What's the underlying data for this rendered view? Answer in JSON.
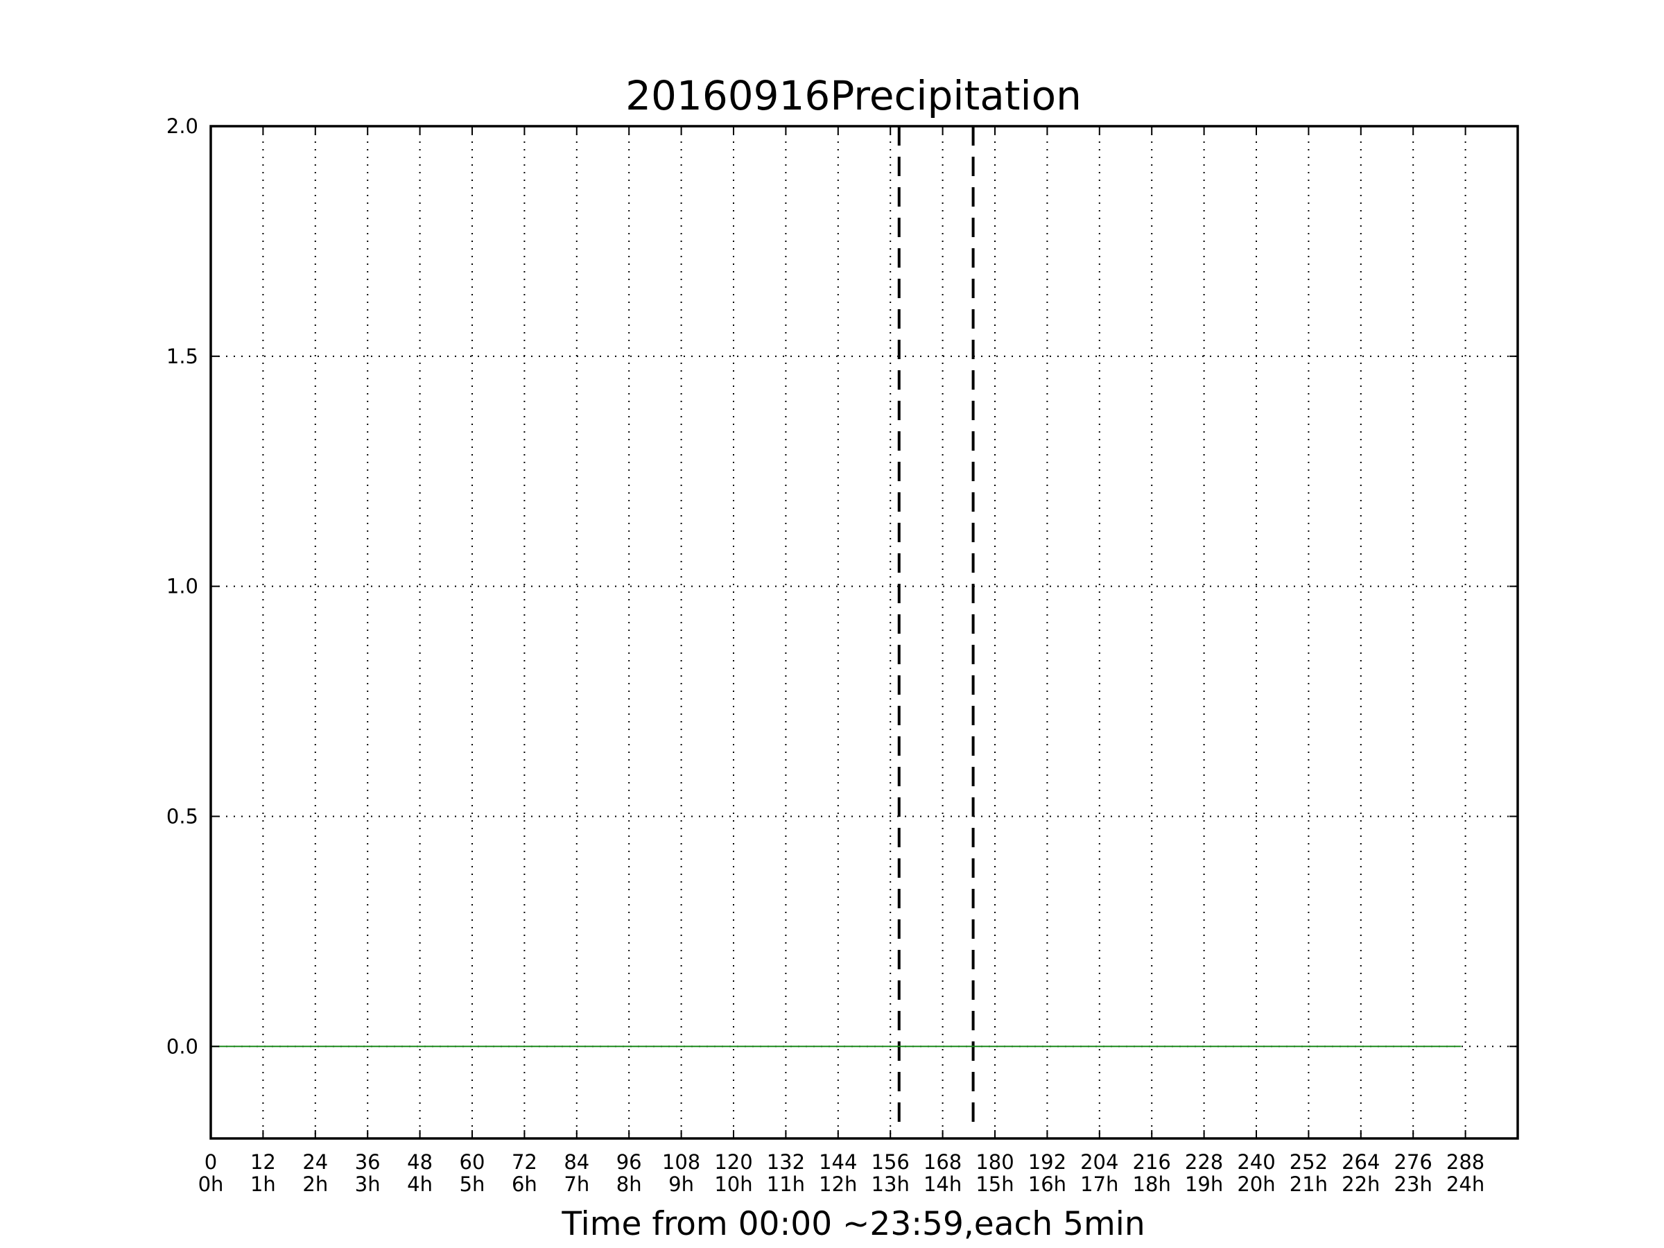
{
  "chart_data": {
    "type": "line",
    "title": "20160916Precipitation",
    "xlabel": "Time from 00:00 ~23:59,each 5min",
    "ylabel": "",
    "xlim": [
      0,
      300
    ],
    "ylim": [
      -0.2,
      2.0
    ],
    "grid": true,
    "x_ticks": [
      0,
      12,
      24,
      36,
      48,
      60,
      72,
      84,
      96,
      108,
      120,
      132,
      144,
      156,
      168,
      180,
      192,
      204,
      216,
      228,
      240,
      252,
      264,
      276,
      288
    ],
    "x_tick_labels_top": [
      "0",
      "12",
      "24",
      "36",
      "48",
      "60",
      "72",
      "84",
      "96",
      "108",
      "120",
      "132",
      "144",
      "156",
      "168",
      "180",
      "192",
      "204",
      "216",
      "228",
      "240",
      "252",
      "264",
      "276",
      "288"
    ],
    "x_tick_labels_bottom": [
      "0h",
      "1h",
      "2h",
      "3h",
      "4h",
      "5h",
      "6h",
      "7h",
      "8h",
      "9h",
      "10h",
      "11h",
      "12h",
      "13h",
      "14h",
      "15h",
      "16h",
      "17h",
      "18h",
      "19h",
      "20h",
      "21h",
      "22h",
      "23h",
      "24h"
    ],
    "y_ticks": [
      0.0,
      0.5,
      1.0,
      1.5,
      2.0
    ],
    "y_tick_labels": [
      "0.0",
      "0.5",
      "1.0",
      "1.5",
      "2.0"
    ],
    "vertical_lines": [
      158,
      175
    ],
    "series": [
      {
        "x": [
          0,
          287
        ],
        "values": [
          0,
          0
        ],
        "color": "#1a8a1a"
      }
    ]
  }
}
